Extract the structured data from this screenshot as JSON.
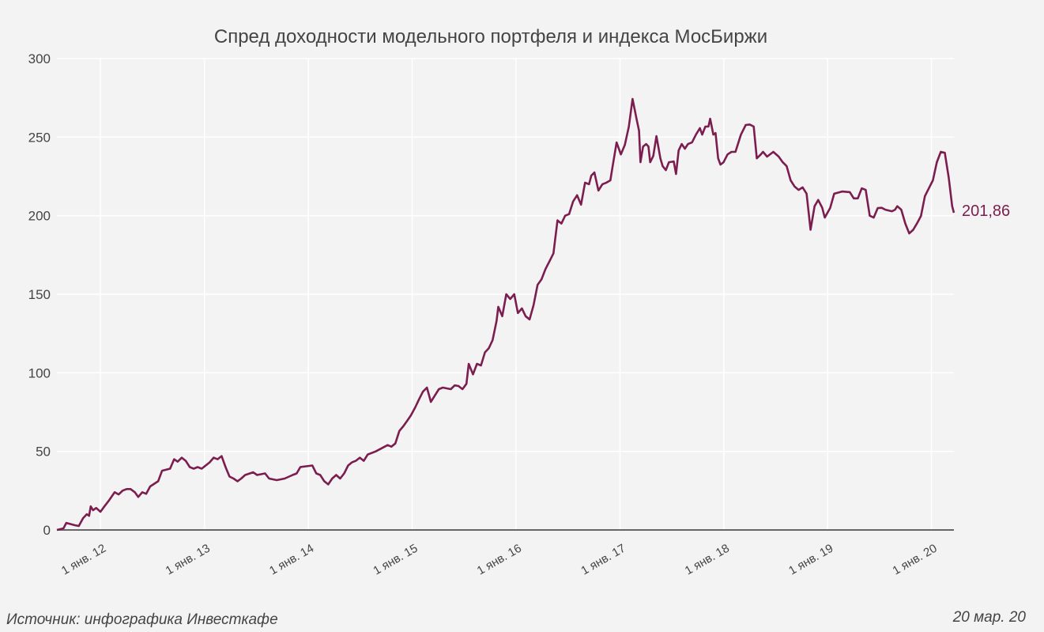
{
  "chart_data": {
    "type": "line",
    "title": "Спред доходности модельного портфеля и индекса МосБиржи",
    "xlabel": "",
    "ylabel": "",
    "ylim": [
      0,
      300
    ],
    "yticks": [
      0,
      50,
      100,
      150,
      200,
      250,
      300
    ],
    "xlim": [
      "2011-08-01",
      "2020-03-20"
    ],
    "xticks": [
      {
        "date": "2012-01-01",
        "label": "1 янв. 12"
      },
      {
        "date": "2013-01-01",
        "label": "1 янв. 13"
      },
      {
        "date": "2014-01-01",
        "label": "1 янв. 14"
      },
      {
        "date": "2015-01-01",
        "label": "1 янв. 15"
      },
      {
        "date": "2016-01-01",
        "label": "1 янв. 16"
      },
      {
        "date": "2017-01-01",
        "label": "1 янв. 17"
      },
      {
        "date": "2018-01-01",
        "label": "1 янв. 18"
      },
      {
        "date": "2019-01-01",
        "label": "1 янв. 19"
      },
      {
        "date": "2020-01-01",
        "label": "1 янв. 20"
      }
    ],
    "grid": true,
    "line_color": "#7b1e4f",
    "end_label": "201,86",
    "series": [
      {
        "points": [
          [
            "2011-08-01",
            0
          ],
          [
            "2011-08-24",
            1
          ],
          [
            "2011-09-03",
            4.5
          ],
          [
            "2011-10-03",
            3
          ],
          [
            "2011-10-17",
            2.5
          ],
          [
            "2011-11-01",
            7.5
          ],
          [
            "2011-11-14",
            10
          ],
          [
            "2011-11-22",
            9
          ],
          [
            "2011-11-28",
            15
          ],
          [
            "2011-12-06",
            12.6
          ],
          [
            "2011-12-17",
            14
          ],
          [
            "2011-12-26",
            12.6
          ],
          [
            "2012-01-01",
            11.6
          ],
          [
            "2012-01-15",
            15
          ],
          [
            "2012-02-01",
            19
          ],
          [
            "2012-02-20",
            24
          ],
          [
            "2012-03-05",
            22.6
          ],
          [
            "2012-03-19",
            25
          ],
          [
            "2012-04-02",
            26
          ],
          [
            "2012-04-16",
            26
          ],
          [
            "2012-05-01",
            24
          ],
          [
            "2012-05-13",
            21
          ],
          [
            "2012-05-27",
            24
          ],
          [
            "2012-06-10",
            23
          ],
          [
            "2012-06-24",
            27.7
          ],
          [
            "2012-07-22",
            31
          ],
          [
            "2012-08-05",
            37.7
          ],
          [
            "2012-09-02",
            39
          ],
          [
            "2012-09-16",
            45
          ],
          [
            "2012-09-29",
            43.5
          ],
          [
            "2012-10-13",
            46
          ],
          [
            "2012-10-27",
            44
          ],
          [
            "2012-11-10",
            40
          ],
          [
            "2012-11-24",
            39
          ],
          [
            "2012-12-08",
            40
          ],
          [
            "2012-12-22",
            39
          ],
          [
            "2013-01-19",
            43
          ],
          [
            "2013-02-02",
            46
          ],
          [
            "2013-02-16",
            45
          ],
          [
            "2013-03-02",
            47
          ],
          [
            "2013-03-16",
            40
          ],
          [
            "2013-03-30",
            34
          ],
          [
            "2013-04-13",
            32.7
          ],
          [
            "2013-04-27",
            31
          ],
          [
            "2013-05-10",
            32.7
          ],
          [
            "2013-05-24",
            35
          ],
          [
            "2013-06-21",
            36.7
          ],
          [
            "2013-07-05",
            35
          ],
          [
            "2013-08-02",
            36
          ],
          [
            "2013-08-16",
            32.7
          ],
          [
            "2013-09-12",
            31.7
          ],
          [
            "2013-10-10",
            32.7
          ],
          [
            "2013-11-07",
            35
          ],
          [
            "2013-11-21",
            36
          ],
          [
            "2013-12-04",
            40
          ],
          [
            "2014-01-15",
            41
          ],
          [
            "2014-01-29",
            36
          ],
          [
            "2014-02-12",
            35
          ],
          [
            "2014-02-26",
            31
          ],
          [
            "2014-03-12",
            29
          ],
          [
            "2014-03-26",
            32.7
          ],
          [
            "2014-04-09",
            35
          ],
          [
            "2014-04-23",
            32.7
          ],
          [
            "2014-05-07",
            36
          ],
          [
            "2014-05-21",
            41
          ],
          [
            "2014-06-03",
            43
          ],
          [
            "2014-06-17",
            44
          ],
          [
            "2014-07-01",
            46
          ],
          [
            "2014-07-15",
            44
          ],
          [
            "2014-07-29",
            48
          ],
          [
            "2014-08-26",
            50
          ],
          [
            "2014-10-07",
            54
          ],
          [
            "2014-10-20",
            53
          ],
          [
            "2014-11-03",
            55
          ],
          [
            "2014-11-17",
            63
          ],
          [
            "2014-12-01",
            66
          ],
          [
            "2014-12-15",
            69.5
          ],
          [
            "2014-12-28",
            73
          ],
          [
            "2015-01-12",
            78
          ],
          [
            "2015-01-25",
            83
          ],
          [
            "2015-02-08",
            88
          ],
          [
            "2015-02-22",
            90.6
          ],
          [
            "2015-03-08",
            81.5
          ],
          [
            "2015-03-22",
            85.6
          ],
          [
            "2015-04-05",
            89.6
          ],
          [
            "2015-04-19",
            90.6
          ],
          [
            "2015-05-17",
            89.6
          ],
          [
            "2015-05-31",
            92
          ],
          [
            "2015-06-13",
            91.6
          ],
          [
            "2015-06-27",
            89.6
          ],
          [
            "2015-07-11",
            93
          ],
          [
            "2015-07-19",
            105.7
          ],
          [
            "2015-08-03",
            99
          ],
          [
            "2015-08-17",
            105.7
          ],
          [
            "2015-08-31",
            104.7
          ],
          [
            "2015-09-14",
            113
          ],
          [
            "2015-09-28",
            115.7
          ],
          [
            "2015-10-11",
            120.8
          ],
          [
            "2015-10-25",
            133
          ],
          [
            "2015-10-31",
            142
          ],
          [
            "2015-11-14",
            136
          ],
          [
            "2015-11-28",
            150
          ],
          [
            "2015-12-12",
            147
          ],
          [
            "2015-12-26",
            150
          ],
          [
            "2016-01-08",
            138
          ],
          [
            "2016-01-22",
            141
          ],
          [
            "2016-02-04",
            136
          ],
          [
            "2016-02-18",
            134
          ],
          [
            "2016-03-03",
            143
          ],
          [
            "2016-03-17",
            156
          ],
          [
            "2016-03-31",
            159.5
          ],
          [
            "2016-04-14",
            166
          ],
          [
            "2016-04-28",
            171
          ],
          [
            "2016-05-12",
            176
          ],
          [
            "2016-05-26",
            197
          ],
          [
            "2016-06-09",
            195
          ],
          [
            "2016-06-22",
            200
          ],
          [
            "2016-07-06",
            201
          ],
          [
            "2016-07-20",
            209
          ],
          [
            "2016-08-03",
            213
          ],
          [
            "2016-08-17",
            207
          ],
          [
            "2016-08-31",
            221
          ],
          [
            "2016-09-14",
            220
          ],
          [
            "2016-09-22",
            225.5
          ],
          [
            "2016-10-03",
            227.5
          ],
          [
            "2016-10-17",
            216
          ],
          [
            "2016-10-31",
            220
          ],
          [
            "2016-11-14",
            221
          ],
          [
            "2016-11-28",
            222.5
          ],
          [
            "2016-12-06",
            231.5
          ],
          [
            "2016-12-20",
            246.6
          ],
          [
            "2017-01-04",
            239
          ],
          [
            "2017-01-18",
            245
          ],
          [
            "2017-02-01",
            256.7
          ],
          [
            "2017-02-14",
            274.3
          ],
          [
            "2017-02-28",
            261.7
          ],
          [
            "2017-03-09",
            254
          ],
          [
            "2017-03-14",
            234
          ],
          [
            "2017-03-23",
            244
          ],
          [
            "2017-04-03",
            245.6
          ],
          [
            "2017-04-11",
            244
          ],
          [
            "2017-04-17",
            234
          ],
          [
            "2017-04-28",
            238
          ],
          [
            "2017-05-09",
            250.6
          ],
          [
            "2017-05-23",
            236.5
          ],
          [
            "2017-05-31",
            231.5
          ],
          [
            "2017-06-11",
            229
          ],
          [
            "2017-06-22",
            234
          ],
          [
            "2017-07-09",
            234.5
          ],
          [
            "2017-07-17",
            226.5
          ],
          [
            "2017-07-26",
            241.5
          ],
          [
            "2017-08-06",
            245.6
          ],
          [
            "2017-08-17",
            242.6
          ],
          [
            "2017-08-28",
            245.6
          ],
          [
            "2017-09-11",
            246.6
          ],
          [
            "2017-09-25",
            251.6
          ],
          [
            "2017-10-09",
            255.7
          ],
          [
            "2017-10-17",
            251.6
          ],
          [
            "2017-10-28",
            256.7
          ],
          [
            "2017-11-08",
            256.7
          ],
          [
            "2017-11-14",
            261.7
          ],
          [
            "2017-11-25",
            251.6
          ],
          [
            "2017-12-03",
            252.6
          ],
          [
            "2017-12-12",
            236.5
          ],
          [
            "2017-12-20",
            232.5
          ],
          [
            "2017-12-31",
            234
          ],
          [
            "2018-01-14",
            239
          ],
          [
            "2018-01-28",
            240.6
          ],
          [
            "2018-02-11",
            240.6
          ],
          [
            "2018-03-02",
            251.6
          ],
          [
            "2018-03-19",
            257.7
          ],
          [
            "2018-04-02",
            258
          ],
          [
            "2018-04-16",
            256.7
          ],
          [
            "2018-04-27",
            236.5
          ],
          [
            "2018-05-11",
            239
          ],
          [
            "2018-05-19",
            240.6
          ],
          [
            "2018-06-02",
            237.6
          ],
          [
            "2018-06-24",
            240.6
          ],
          [
            "2018-07-13",
            237.6
          ],
          [
            "2018-07-27",
            234
          ],
          [
            "2018-08-10",
            231.5
          ],
          [
            "2018-08-24",
            222.5
          ],
          [
            "2018-09-07",
            218.5
          ],
          [
            "2018-09-21",
            216.4
          ],
          [
            "2018-10-05",
            218
          ],
          [
            "2018-10-19",
            214
          ],
          [
            "2018-11-02",
            191
          ],
          [
            "2018-11-16",
            206
          ],
          [
            "2018-11-29",
            210
          ],
          [
            "2018-12-13",
            205
          ],
          [
            "2018-12-22",
            198.8
          ],
          [
            "2019-01-10",
            205
          ],
          [
            "2019-01-24",
            214
          ],
          [
            "2019-02-21",
            215.4
          ],
          [
            "2019-03-20",
            215
          ],
          [
            "2019-04-03",
            211
          ],
          [
            "2019-04-17",
            211
          ],
          [
            "2019-05-01",
            217.4
          ],
          [
            "2019-05-15",
            216.4
          ],
          [
            "2019-05-29",
            200
          ],
          [
            "2019-06-12",
            198.8
          ],
          [
            "2019-06-26",
            204.8
          ],
          [
            "2019-07-10",
            205
          ],
          [
            "2019-07-23",
            203.8
          ],
          [
            "2019-08-15",
            202.8
          ],
          [
            "2019-08-26",
            203.8
          ],
          [
            "2019-09-03",
            206
          ],
          [
            "2019-09-17",
            203.8
          ],
          [
            "2019-10-01",
            195
          ],
          [
            "2019-10-15",
            188.7
          ],
          [
            "2019-10-29",
            191
          ],
          [
            "2019-11-11",
            195
          ],
          [
            "2019-11-25",
            199.8
          ],
          [
            "2019-12-09",
            212.4
          ],
          [
            "2019-12-23",
            217.4
          ],
          [
            "2020-01-06",
            222.5
          ],
          [
            "2020-01-20",
            234
          ],
          [
            "2020-02-03",
            240.6
          ],
          [
            "2020-02-17",
            240
          ],
          [
            "2020-03-02",
            224
          ],
          [
            "2020-03-14",
            206
          ],
          [
            "2020-03-20",
            201.86
          ]
        ]
      }
    ]
  },
  "footer": {
    "source": "Источник: инфографика Инвесткафе",
    "date": "20 мар. 20"
  }
}
